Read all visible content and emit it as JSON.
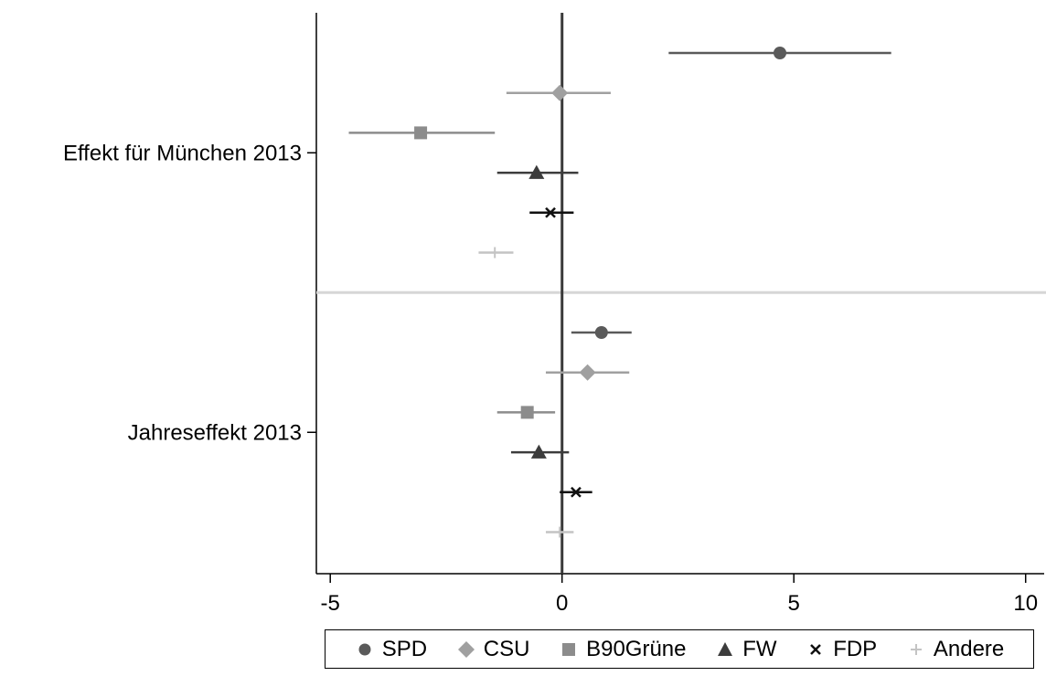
{
  "chart_data": {
    "type": "scatter",
    "subtype": "coefficient-plot",
    "orientation": "horizontal",
    "title": "",
    "xlabel": "",
    "ylabel": "",
    "xlim": [
      -5.3,
      10.4
    ],
    "xticks": [
      -5,
      0,
      5,
      10
    ],
    "xtick_labels": [
      "-5",
      "0",
      "5",
      "10"
    ],
    "reference_line_x": 0,
    "groups": [
      {
        "label": "Effekt für München 2013",
        "label_series_index": 2
      },
      {
        "label": "Jahreseffekt 2013",
        "label_series_index": 2
      }
    ],
    "series": [
      {
        "name": "SPD",
        "color": "#5a5a5a",
        "marker": "circle",
        "points": [
          {
            "group": 0,
            "est": 4.7,
            "lo": 2.3,
            "hi": 7.1
          },
          {
            "group": 1,
            "est": 0.85,
            "lo": 0.2,
            "hi": 1.5
          }
        ]
      },
      {
        "name": "CSU",
        "color": "#a0a0a0",
        "marker": "diamond",
        "points": [
          {
            "group": 0,
            "est": -0.05,
            "lo": -1.2,
            "hi": 1.05
          },
          {
            "group": 1,
            "est": 0.55,
            "lo": -0.35,
            "hi": 1.45
          }
        ]
      },
      {
        "name": "B90Grüne",
        "color": "#8c8c8c",
        "marker": "square",
        "points": [
          {
            "group": 0,
            "est": -3.05,
            "lo": -4.6,
            "hi": -1.45
          },
          {
            "group": 1,
            "est": -0.75,
            "lo": -1.4,
            "hi": -0.15
          }
        ]
      },
      {
        "name": "FW",
        "color": "#3c3c3c",
        "marker": "triangle",
        "points": [
          {
            "group": 0,
            "est": -0.55,
            "lo": -1.4,
            "hi": 0.35
          },
          {
            "group": 1,
            "est": -0.5,
            "lo": -1.1,
            "hi": 0.15
          }
        ]
      },
      {
        "name": "FDP",
        "color": "#111111",
        "marker": "x",
        "points": [
          {
            "group": 0,
            "est": -0.25,
            "lo": -0.7,
            "hi": 0.25
          },
          {
            "group": 1,
            "est": 0.3,
            "lo": -0.05,
            "hi": 0.65
          }
        ]
      },
      {
        "name": "Andere",
        "color": "#c4c4c4",
        "marker": "plus",
        "points": [
          {
            "group": 0,
            "est": -1.45,
            "lo": -1.8,
            "hi": -1.05
          },
          {
            "group": 1,
            "est": -0.05,
            "lo": -0.35,
            "hi": 0.25
          }
        ]
      }
    ],
    "legend_position": "bottom",
    "group_separator": true,
    "grid": false
  }
}
